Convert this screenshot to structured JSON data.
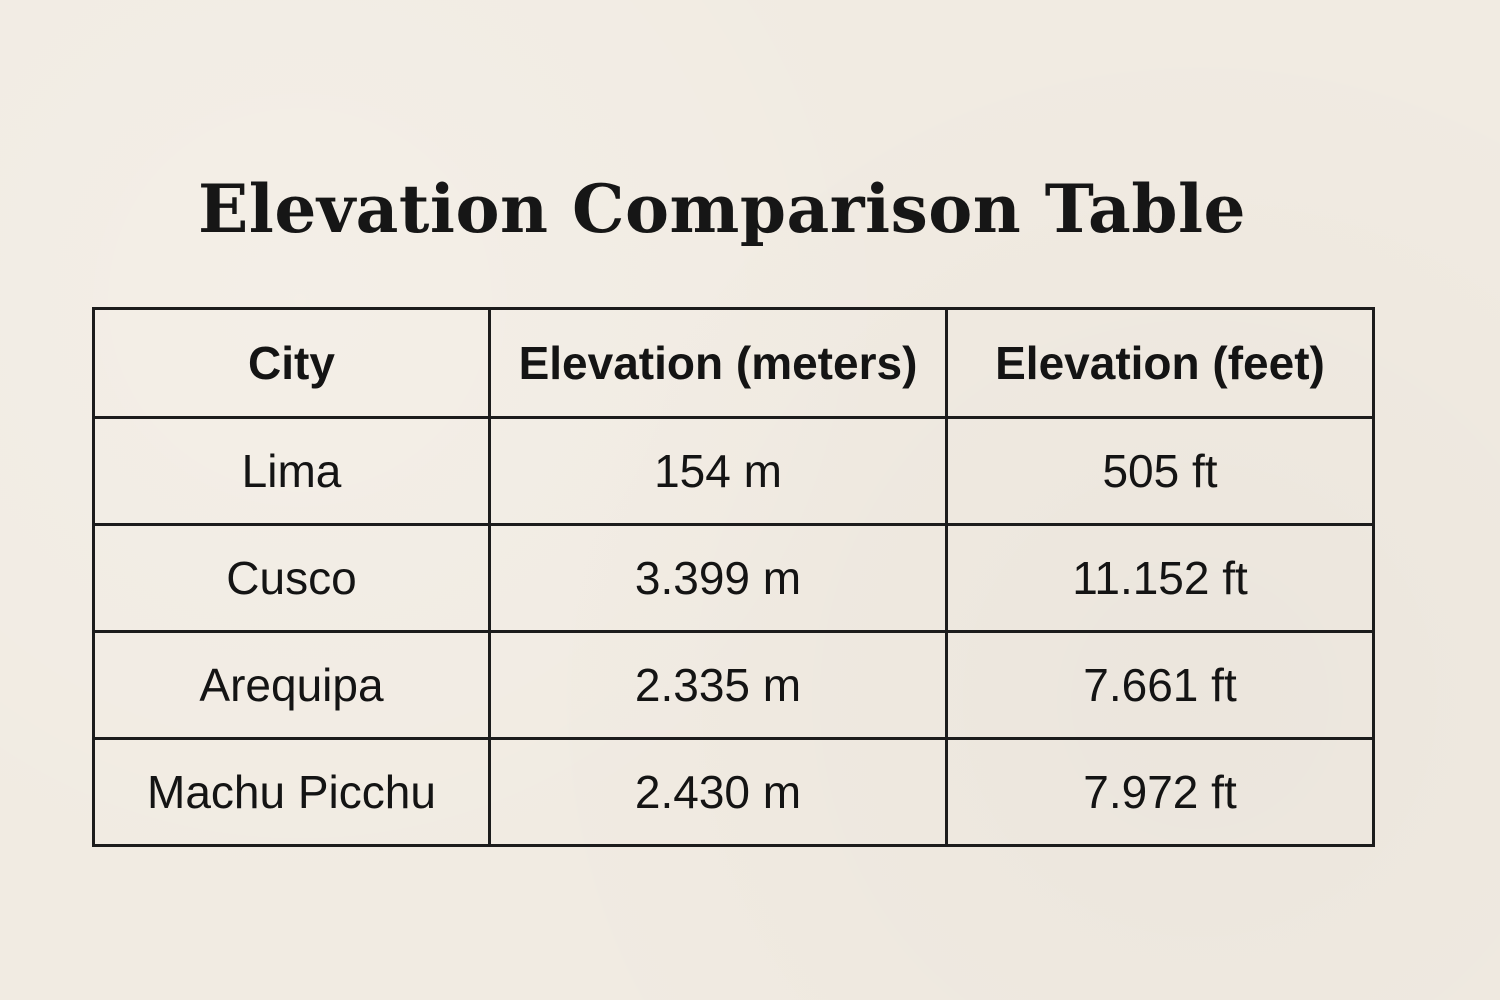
{
  "title": "Elevation Comparison Table",
  "table": {
    "headers": [
      "City",
      "Elevation (meters)",
      "Elevation (feet)"
    ],
    "rows": [
      [
        "Lima",
        "154 m",
        "505 ft"
      ],
      [
        "Cusco",
        "3.399 m",
        "11.152 ft"
      ],
      [
        "Arequipa",
        "2.335 m",
        "7.661 ft"
      ],
      [
        "Machu Picchu",
        "2.430 m",
        "7.972 ft"
      ]
    ]
  },
  "chart_data": {
    "type": "table",
    "title": "Elevation Comparison Table",
    "columns": [
      "City",
      "Elevation (meters)",
      "Elevation (feet)"
    ],
    "rows": [
      [
        "Lima",
        "154 m",
        "505 ft"
      ],
      [
        "Cusco",
        "3.399 m",
        "11.152 ft"
      ],
      [
        "Arequipa",
        "2.335 m",
        "7.661 ft"
      ],
      [
        "Machu Picchu",
        "2.430 m",
        "7.972 ft"
      ]
    ]
  }
}
